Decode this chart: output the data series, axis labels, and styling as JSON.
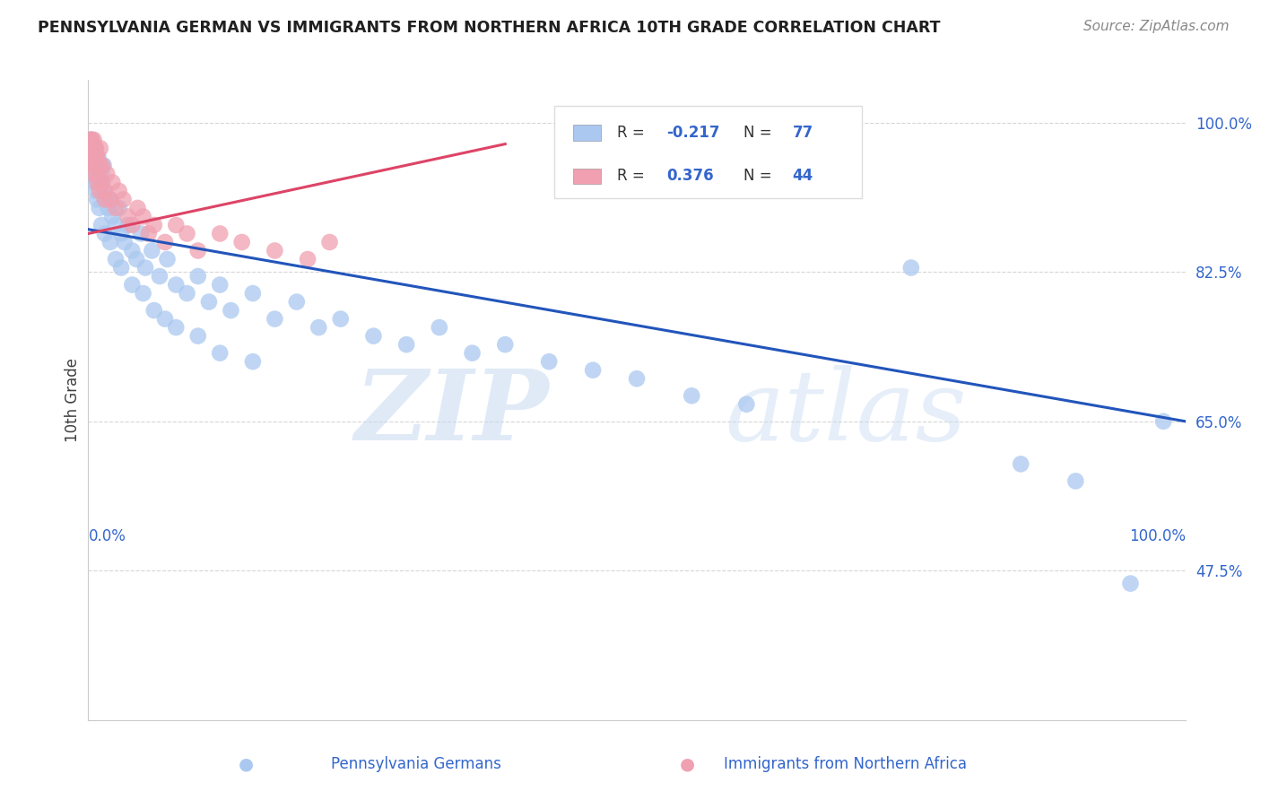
{
  "title": "PENNSYLVANIA GERMAN VS IMMIGRANTS FROM NORTHERN AFRICA 10TH GRADE CORRELATION CHART",
  "source": "Source: ZipAtlas.com",
  "ylabel": "10th Grade",
  "legend_label1": "Pennsylvania Germans",
  "legend_label2": "Immigrants from Northern Africa",
  "R1": -0.217,
  "N1": 77,
  "R2": 0.376,
  "N2": 44,
  "xlim": [
    0.0,
    1.0
  ],
  "ylim": [
    0.3,
    1.05
  ],
  "yticks": [
    0.475,
    0.65,
    0.825,
    1.0
  ],
  "ytick_labels": [
    "47.5%",
    "65.0%",
    "82.5%",
    "100.0%"
  ],
  "xtick_labels": [
    "0.0%",
    "100.0%"
  ],
  "color_blue": "#aac8f0",
  "color_pink": "#f0a0b0",
  "line_blue": "#2255bb",
  "line_pink": "#dd4466",
  "background": "#ffffff",
  "grid_color": "#cccccc",
  "title_color": "#202020",
  "axis_label_color": "#3366cc",
  "blue_line_x": [
    0.0,
    1.0
  ],
  "blue_line_y": [
    0.875,
    0.65
  ],
  "pink_line_x": [
    0.0,
    0.38
  ],
  "pink_line_y": [
    0.87,
    0.975
  ],
  "blue_x": [
    0.003,
    0.004,
    0.005,
    0.006,
    0.007,
    0.008,
    0.009,
    0.01,
    0.011,
    0.012,
    0.013,
    0.014,
    0.015,
    0.016,
    0.018,
    0.02,
    0.022,
    0.025,
    0.028,
    0.03,
    0.033,
    0.036,
    0.04,
    0.044,
    0.048,
    0.052,
    0.058,
    0.065,
    0.072,
    0.08,
    0.09,
    0.1,
    0.11,
    0.12,
    0.13,
    0.15,
    0.17,
    0.19,
    0.21,
    0.23,
    0.26,
    0.29,
    0.32,
    0.35,
    0.38,
    0.42,
    0.46,
    0.5,
    0.55,
    0.6,
    0.001,
    0.002,
    0.003,
    0.004,
    0.005,
    0.006,
    0.007,
    0.008,
    0.01,
    0.012,
    0.015,
    0.02,
    0.025,
    0.03,
    0.04,
    0.05,
    0.06,
    0.07,
    0.08,
    0.1,
    0.12,
    0.15,
    0.75,
    0.85,
    0.9,
    0.95,
    0.98
  ],
  "blue_y": [
    0.97,
    0.96,
    0.95,
    0.97,
    0.95,
    0.94,
    0.96,
    0.93,
    0.95,
    0.94,
    0.93,
    0.95,
    0.92,
    0.91,
    0.9,
    0.91,
    0.89,
    0.88,
    0.9,
    0.87,
    0.86,
    0.88,
    0.85,
    0.84,
    0.87,
    0.83,
    0.85,
    0.82,
    0.84,
    0.81,
    0.8,
    0.82,
    0.79,
    0.81,
    0.78,
    0.8,
    0.77,
    0.79,
    0.76,
    0.77,
    0.75,
    0.74,
    0.76,
    0.73,
    0.74,
    0.72,
    0.71,
    0.7,
    0.68,
    0.67,
    0.98,
    0.97,
    0.98,
    0.96,
    0.94,
    0.93,
    0.92,
    0.91,
    0.9,
    0.88,
    0.87,
    0.86,
    0.84,
    0.83,
    0.81,
    0.8,
    0.78,
    0.77,
    0.76,
    0.75,
    0.73,
    0.72,
    0.83,
    0.6,
    0.58,
    0.46,
    0.65
  ],
  "pink_x": [
    0.002,
    0.003,
    0.004,
    0.005,
    0.006,
    0.007,
    0.008,
    0.009,
    0.01,
    0.011,
    0.012,
    0.013,
    0.015,
    0.017,
    0.02,
    0.022,
    0.025,
    0.028,
    0.032,
    0.036,
    0.04,
    0.045,
    0.05,
    0.055,
    0.06,
    0.07,
    0.08,
    0.09,
    0.1,
    0.12,
    0.14,
    0.17,
    0.2,
    0.22,
    0.001,
    0.002,
    0.003,
    0.004,
    0.005,
    0.006,
    0.007,
    0.008,
    0.01,
    0.015
  ],
  "pink_y": [
    0.98,
    0.97,
    0.96,
    0.98,
    0.95,
    0.97,
    0.96,
    0.94,
    0.95,
    0.97,
    0.93,
    0.95,
    0.92,
    0.94,
    0.91,
    0.93,
    0.9,
    0.92,
    0.91,
    0.89,
    0.88,
    0.9,
    0.89,
    0.87,
    0.88,
    0.86,
    0.88,
    0.87,
    0.85,
    0.87,
    0.86,
    0.85,
    0.84,
    0.86,
    0.97,
    0.96,
    0.98,
    0.95,
    0.94,
    0.97,
    0.96,
    0.93,
    0.92,
    0.91
  ]
}
